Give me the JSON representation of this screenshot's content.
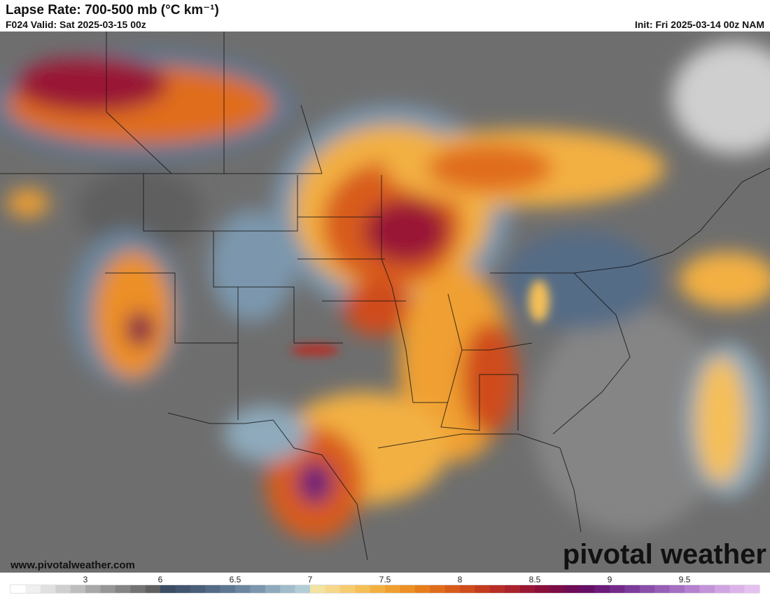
{
  "header": {
    "title": "Lapse Rate: 700-500 mb (°C km⁻¹)",
    "valid": "F024 Valid: Sat 2025-03-15 00z",
    "init": "Init: Fri 2025-03-14 00z NAM"
  },
  "footer": {
    "website": "www.pivotalweather.com",
    "logo": "pivotal weather"
  },
  "colorbar": {
    "labels": [
      3,
      6,
      6.5,
      7,
      7.5,
      8,
      8.5,
      9,
      9.5
    ],
    "colors": [
      "#ffffff",
      "#f0f0f0",
      "#e0e0e0",
      "#cfcfcf",
      "#bdbdbd",
      "#a8a8a8",
      "#969696",
      "#858585",
      "#737373",
      "#616161",
      "#3b4d63",
      "#42566f",
      "#4a607a",
      "#546c86",
      "#5f7892",
      "#6c879f",
      "#7c97ad",
      "#8eaabc",
      "#a1bccb",
      "#b3cdd8",
      "#f2e3a0",
      "#f5d88a",
      "#f6cc70",
      "#f5bf58",
      "#f3b042",
      "#f0a030",
      "#ec8f25",
      "#e77e1e",
      "#e06d1b",
      "#d85c1a",
      "#cf4c1c",
      "#c43c20",
      "#b82e26",
      "#aa222d",
      "#9a1834",
      "#8a103c",
      "#7b0d47",
      "#6e0c55",
      "#660f66",
      "#6b1b78",
      "#742a8a",
      "#7e3c9a",
      "#8a4fa8",
      "#975fb6",
      "#a56fc2",
      "#b581cf",
      "#c393da",
      "#d0a4e3",
      "#dbb3ea",
      "#e5c1f0"
    ]
  }
}
